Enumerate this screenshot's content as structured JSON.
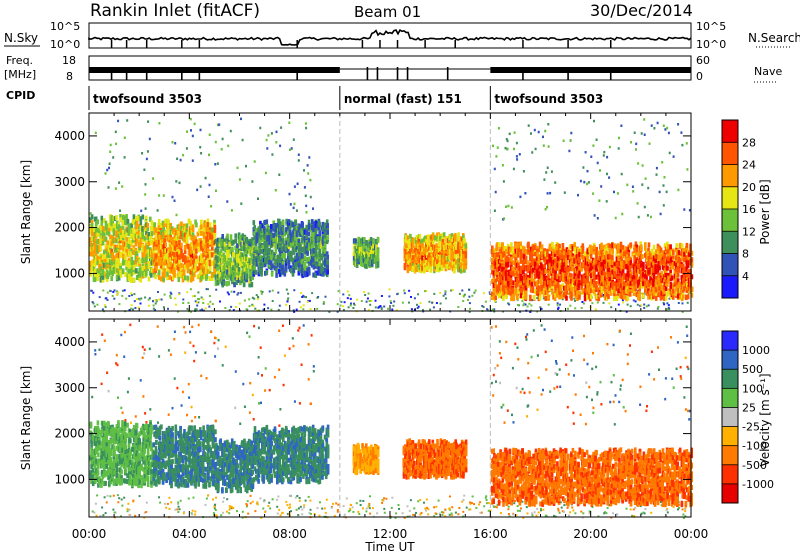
{
  "header": {
    "station": "Rankin Inlet (fitACF)",
    "beam": "Beam 01",
    "date": "30/Dec/2014"
  },
  "panels": {
    "nsky_label": "N.Sky",
    "nsearch_label": "N.Search",
    "nsky_ticks": [
      "10^5",
      "10^0"
    ],
    "nsearch_ticks": [
      "10^5",
      "10^0"
    ],
    "freq_label_1": "Freq.",
    "freq_label_2": "[MHz]",
    "freq_ticks": [
      "18",
      "8"
    ],
    "nave_label": "Nave",
    "nave_ticks": [
      "60",
      "0"
    ],
    "cpid_label": "CPID",
    "cpid_segments": [
      {
        "name": "twofsound 3503",
        "start_hr": 0,
        "end_hr": 10
      },
      {
        "name": "normal (fast) 151",
        "start_hr": 10,
        "end_hr": 16
      },
      {
        "name": "twofsound 3503",
        "start_hr": 16,
        "end_hr": 24
      }
    ]
  },
  "axes": {
    "ylabel": "Slant Range [km]",
    "yticks": [
      "1000",
      "2000",
      "3000",
      "4000"
    ],
    "xlabel": "Time UT",
    "xticks": [
      "00:00",
      "04:00",
      "08:00",
      "12:00",
      "16:00",
      "20:00",
      "00:00"
    ]
  },
  "colorbars": {
    "power": {
      "label": "Power [dB]",
      "ticks": [
        "4",
        "8",
        "12",
        "16",
        "20",
        "24",
        "28"
      ],
      "colors": [
        "#1a1aff",
        "#3153b8",
        "#3f8f5c",
        "#6cc03a",
        "#e6e615",
        "#ff9900",
        "#ff5500",
        "#ee0000"
      ]
    },
    "velocity": {
      "label": "Velocity [m s⁻¹]",
      "ticks": [
        "1000",
        "500",
        "100",
        "25",
        "-25",
        "-100",
        "-500",
        "-1000"
      ],
      "colors": [
        "#2a2aff",
        "#2f66c4",
        "#3a8f5f",
        "#5fbf45",
        "#bfbfbf",
        "#ffb000",
        "#ff7a00",
        "#ff3000",
        "#e60000"
      ]
    }
  },
  "chart_data": [
    {
      "type": "heatmap",
      "title": "Rankin Inlet (fitACF) Beam 01 30/Dec/2014",
      "xlabel": "Time UT",
      "ylabel": "Slant Range [km]",
      "xlim": [
        0,
        24
      ],
      "ylim": [
        180,
        4500
      ],
      "colorbar": "Power [dB]",
      "scatter_regions": [
        {
          "t0": 0.0,
          "t1": 2.5,
          "r0": 900,
          "r1": 2300,
          "value": 20
        },
        {
          "t0": 2.5,
          "t1": 5.0,
          "r0": 900,
          "r1": 2200,
          "value": 24
        },
        {
          "t0": 5.0,
          "t1": 6.5,
          "r0": 800,
          "r1": 1900,
          "value": 16
        },
        {
          "t0": 6.5,
          "t1": 9.5,
          "r0": 1000,
          "r1": 2200,
          "value": 12
        },
        {
          "t0": 10.5,
          "t1": 11.5,
          "r0": 1200,
          "r1": 1800,
          "value": 16
        },
        {
          "t0": 12.5,
          "t1": 15.0,
          "r0": 1100,
          "r1": 1900,
          "value": 24
        },
        {
          "t0": 16.0,
          "t1": 24.0,
          "r0": 500,
          "r1": 1700,
          "value": 28
        }
      ]
    },
    {
      "type": "heatmap",
      "title": "",
      "xlabel": "Time UT",
      "ylabel": "Slant Range [km]",
      "xlim": [
        0,
        24
      ],
      "ylim": [
        180,
        4500
      ],
      "colorbar": "Velocity [m s-1]",
      "scatter_regions": [
        {
          "t0": 0.0,
          "t1": 2.5,
          "r0": 900,
          "r1": 2300,
          "value": 100
        },
        {
          "t0": 2.5,
          "t1": 5.0,
          "r0": 900,
          "r1": 2200,
          "value": 500
        },
        {
          "t0": 5.0,
          "t1": 6.5,
          "r0": 800,
          "r1": 1900,
          "value": 500
        },
        {
          "t0": 6.5,
          "t1": 9.5,
          "r0": 1000,
          "r1": 2200,
          "value": 500
        },
        {
          "t0": 10.5,
          "t1": 11.5,
          "r0": 1200,
          "r1": 1800,
          "value": -100
        },
        {
          "t0": 12.5,
          "t1": 15.0,
          "r0": 1100,
          "r1": 1900,
          "value": -500
        },
        {
          "t0": 16.0,
          "t1": 24.0,
          "r0": 500,
          "r1": 1700,
          "value": -500
        }
      ]
    }
  ]
}
